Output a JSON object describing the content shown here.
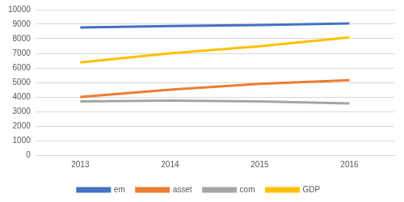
{
  "chart_data": {
    "type": "line",
    "categories": [
      "2013",
      "2014",
      "2015",
      "2016"
    ],
    "series": [
      {
        "name": "em",
        "color": "#4472c4",
        "values": [
          8780,
          8870,
          8950,
          9050
        ]
      },
      {
        "name": "asset",
        "color": "#ed7d31",
        "values": [
          4000,
          4500,
          4900,
          5150
        ]
      },
      {
        "name": "com",
        "color": "#a5a5a5",
        "values": [
          3700,
          3750,
          3700,
          3550
        ]
      },
      {
        "name": "GDP",
        "color": "#ffc000",
        "values": [
          6380,
          7000,
          7480,
          8100
        ]
      }
    ],
    "ylim": [
      0,
      10000
    ],
    "yticks": [
      0,
      1000,
      2000,
      3000,
      4000,
      5000,
      6000,
      7000,
      8000,
      9000,
      10000
    ],
    "grid": true,
    "legend": "bottom"
  }
}
